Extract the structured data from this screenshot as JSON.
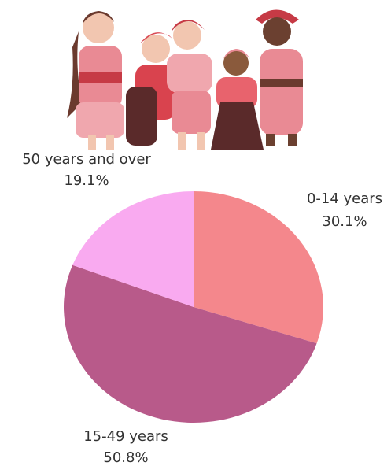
{
  "chart_data": {
    "type": "pie",
    "categories": [
      "0-14 years",
      "15-49 years",
      "50 years and over"
    ],
    "values": [
      30.1,
      50.8,
      19.1
    ],
    "value_labels": [
      "30.1%",
      "50.8%",
      "19.1%"
    ],
    "colors": [
      "#f4878c",
      "#b85a8a",
      "#f9aaf0"
    ]
  }
}
